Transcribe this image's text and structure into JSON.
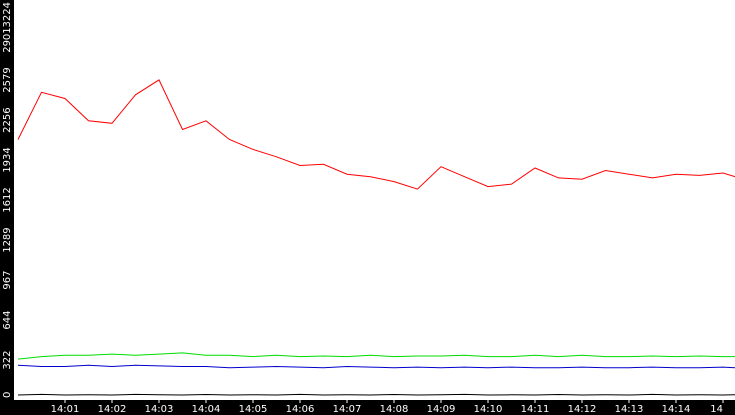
{
  "chart_data": {
    "type": "line",
    "title": "",
    "xlabel": "",
    "ylabel": "",
    "ylim": [
      0,
      3224
    ],
    "grid": false,
    "legend": "none",
    "y_ticks": [
      0,
      322,
      644,
      967,
      1289,
      1612,
      1934,
      2256,
      2579,
      2901,
      3224
    ],
    "x_ticks": [
      "14:01",
      "14:02",
      "14:03",
      "14:04",
      "14:05",
      "14:06",
      "14:07",
      "14:08",
      "14:09",
      "14:10",
      "14:11",
      "14:12",
      "14:13",
      "14:14",
      "14"
    ],
    "background_color": "#ffffff",
    "axis_band_color": "#000000",
    "series": [
      {
        "color": "#ff0000",
        "x": [
          0,
          0.5,
          1,
          1.5,
          2,
          2.5,
          3,
          3.5,
          4,
          4.5,
          5,
          5.5,
          6,
          6.5,
          7,
          7.5,
          8,
          8.5,
          9,
          9.5,
          10,
          10.5,
          11,
          11.5,
          12,
          12.5,
          13,
          13.5,
          14,
          14.5,
          15,
          15.5
        ],
        "values": [
          2100,
          2480,
          2430,
          2250,
          2230,
          2460,
          2580,
          2180,
          2250,
          2100,
          2020,
          1960,
          1890,
          1900,
          1820,
          1800,
          1760,
          1700,
          1880,
          1800,
          1720,
          1740,
          1870,
          1790,
          1780,
          1850,
          1820,
          1790,
          1820,
          1810,
          1830,
          1800
        ]
      },
      {
        "color": "#00dd00",
        "x": [
          0,
          0.5,
          1,
          1.5,
          2,
          2.5,
          3,
          3.5,
          4,
          4.5,
          5,
          5.5,
          6,
          6.5,
          7,
          7.5,
          8,
          8.5,
          9,
          9.5,
          10,
          10.5,
          11,
          11.5,
          12,
          12.5,
          13,
          13.5,
          14,
          14.5,
          15,
          15.5
        ],
        "values": [
          330,
          350,
          360,
          360,
          370,
          360,
          370,
          380,
          360,
          360,
          350,
          360,
          350,
          355,
          350,
          360,
          350,
          355,
          355,
          360,
          350,
          350,
          360,
          350,
          360,
          350,
          350,
          355,
          350,
          355,
          350,
          350
        ]
      },
      {
        "color": "#0000cc",
        "x": [
          0,
          0.5,
          1,
          1.5,
          2,
          2.5,
          3,
          3.5,
          4,
          4.5,
          5,
          5.5,
          6,
          6.5,
          7,
          7.5,
          8,
          8.5,
          9,
          9.5,
          10,
          10.5,
          11,
          11.5,
          12,
          12.5,
          13,
          13.5,
          14,
          14.5,
          15,
          15.5
        ],
        "values": [
          280,
          270,
          270,
          280,
          270,
          280,
          275,
          270,
          270,
          260,
          265,
          270,
          265,
          260,
          270,
          265,
          260,
          265,
          260,
          265,
          260,
          265,
          260,
          260,
          265,
          260,
          260,
          265,
          260,
          260,
          265,
          260
        ]
      },
      {
        "color": "#000000",
        "x": [
          0,
          0.5,
          1,
          1.5,
          2,
          2.5,
          3,
          3.5,
          4,
          4.5,
          5,
          5.5,
          6,
          6.5,
          7,
          7.5,
          8,
          8.5,
          9,
          9.5,
          10,
          10.5,
          11,
          11.5,
          12,
          12.5,
          13,
          13.5,
          14,
          14.5,
          15,
          15.5
        ],
        "values": [
          40,
          45,
          40,
          42,
          40,
          45,
          42,
          40,
          44,
          40,
          42,
          40,
          45,
          40,
          42,
          40,
          44,
          40,
          42,
          45,
          40,
          42,
          40,
          44,
          40,
          42,
          40,
          45,
          40,
          42,
          40,
          42
        ]
      }
    ]
  }
}
